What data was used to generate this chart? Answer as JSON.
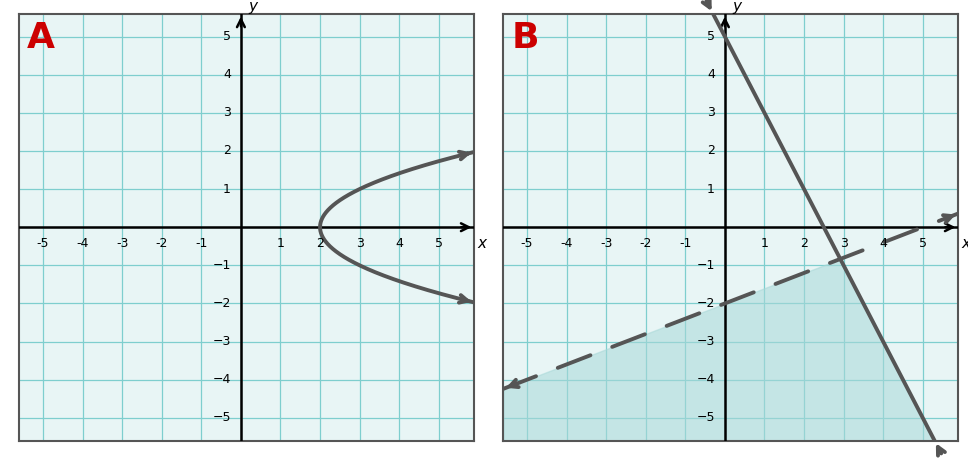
{
  "fig_bg": "#ffffff",
  "panel_bg": "#e8f5f5",
  "grid_color": "#7ecece",
  "axis_color": "#000000",
  "border_color": "#555555",
  "panel_A": {
    "label": "A",
    "label_color": "#cc0000",
    "xlim": [
      -5.6,
      5.9
    ],
    "ylim": [
      -5.6,
      5.6
    ],
    "curve_color": "#555555",
    "curve_lw": 2.8,
    "vertex_x": 2,
    "vertex_y": 0
  },
  "panel_B": {
    "label": "B",
    "label_color": "#cc0000",
    "xlim": [
      -5.6,
      5.9
    ],
    "ylim": [
      -5.6,
      5.6
    ],
    "solid_color": "#555555",
    "solid_lw": 2.8,
    "solid_slope": -2.0,
    "solid_intercept": 5.0,
    "dashed_color": "#555555",
    "dashed_lw": 2.8,
    "dashed_slope": 0.4,
    "dashed_intercept": -2.0,
    "shade_color": "#a8d8d8",
    "shade_alpha": 0.55
  },
  "tick_fontsize": 9,
  "label_fontsize": 11
}
